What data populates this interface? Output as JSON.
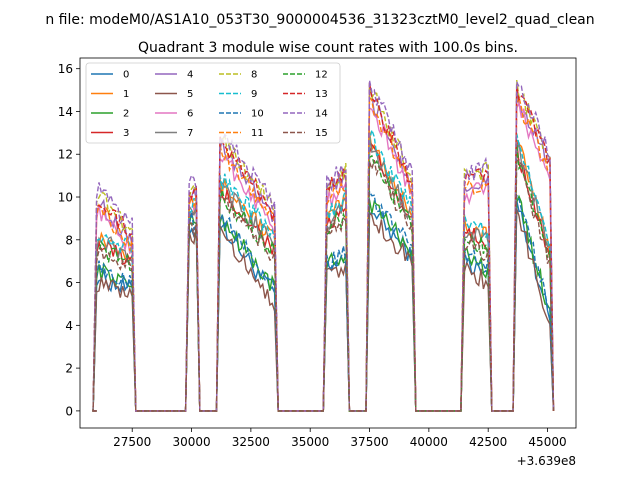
{
  "chart_data": {
    "type": "line",
    "suptitle": "n file: modeM0/AS1A10_053T30_9000004536_31323cztM0_level2_quad_clean",
    "title": "Quadrant 3 module wise count rates with 100.0s bins.",
    "xlabel": "",
    "ylabel": "",
    "x_offset_label": "+3.639e8",
    "xlim": [
      25300,
      46200
    ],
    "ylim": [
      -0.8,
      16.5
    ],
    "xticks": [
      27500,
      30000,
      32500,
      35000,
      37500,
      40000,
      42500,
      45000
    ],
    "yticks": [
      0,
      2,
      4,
      6,
      8,
      10,
      12,
      14,
      16
    ],
    "grid": false,
    "legend_placement": "top-left",
    "legend_columns": 4,
    "active_segments": [
      {
        "start": 26000,
        "end": 27500,
        "groups": {
          "low": [
            6.3,
            5.6
          ],
          "mid": [
            8.0,
            7.2
          ],
          "high": [
            9.8,
            8.0
          ]
        }
      },
      {
        "start": 29900,
        "end": 30200,
        "groups": {
          "low": [
            8.5,
            8.5
          ],
          "mid": [
            9.2,
            9.2
          ],
          "high": [
            10.0,
            10.0
          ]
        }
      },
      {
        "start": 31200,
        "end": 33500,
        "groups": {
          "low": [
            8.8,
            5.4
          ],
          "mid": [
            10.5,
            7.8
          ],
          "high": [
            12.5,
            9.0
          ]
        }
      },
      {
        "start": 35700,
        "end": 36500,
        "groups": {
          "low": [
            6.5,
            7.0
          ],
          "mid": [
            8.8,
            9.6
          ],
          "high": [
            10.2,
            10.8
          ]
        }
      },
      {
        "start": 37500,
        "end": 39300,
        "groups": {
          "low": [
            9.5,
            7.2
          ],
          "mid": [
            12.5,
            9.0
          ],
          "high": [
            14.8,
            10.5
          ]
        }
      },
      {
        "start": 41500,
        "end": 42500,
        "groups": {
          "low": [
            7.0,
            6.3
          ],
          "mid": [
            8.5,
            8.0
          ],
          "high": [
            10.5,
            10.8
          ]
        }
      },
      {
        "start": 43700,
        "end": 45100,
        "groups": {
          "low": [
            9.8,
            4.3
          ],
          "mid": [
            12.5,
            7.5
          ],
          "high": [
            14.8,
            11.5
          ]
        }
      }
    ],
    "series": [
      {
        "name": "0",
        "color": "#1f77b4",
        "dash": "solid",
        "group": "low",
        "offset": 0.0
      },
      {
        "name": "1",
        "color": "#ff7f0e",
        "dash": "solid",
        "group": "mid",
        "offset": 0.2
      },
      {
        "name": "2",
        "color": "#2ca02c",
        "dash": "solid",
        "group": "low",
        "offset": 0.3
      },
      {
        "name": "3",
        "color": "#d62728",
        "dash": "solid",
        "group": "mid",
        "offset": -0.2
      },
      {
        "name": "4",
        "color": "#9467bd",
        "dash": "solid",
        "group": "high",
        "offset": 0.0
      },
      {
        "name": "5",
        "color": "#8c564b",
        "dash": "solid",
        "group": "low",
        "offset": -0.3
      },
      {
        "name": "6",
        "color": "#e377c2",
        "dash": "solid",
        "group": "high",
        "offset": -0.4
      },
      {
        "name": "7",
        "color": "#7f7f7f",
        "dash": "solid",
        "group": "mid",
        "offset": 0.0
      },
      {
        "name": "8",
        "color": "#bcbd22",
        "dash": "dashed",
        "group": "high",
        "offset": 0.4
      },
      {
        "name": "9",
        "color": "#17becf",
        "dash": "dashed",
        "group": "mid",
        "offset": 0.4
      },
      {
        "name": "10",
        "color": "#1f77b4",
        "dash": "dashed",
        "group": "low",
        "offset": 0.4
      },
      {
        "name": "11",
        "color": "#ff7f0e",
        "dash": "dashed",
        "group": "high",
        "offset": -0.2
      },
      {
        "name": "12",
        "color": "#2ca02c",
        "dash": "dashed",
        "group": "mid",
        "offset": -0.4
      },
      {
        "name": "13",
        "color": "#d62728",
        "dash": "dashed",
        "group": "high",
        "offset": 0.2
      },
      {
        "name": "14",
        "color": "#9467bd",
        "dash": "dashed",
        "group": "high",
        "offset": 0.6
      },
      {
        "name": "15",
        "color": "#8c564b",
        "dash": "dashed",
        "group": "mid",
        "offset": -0.6
      }
    ]
  }
}
